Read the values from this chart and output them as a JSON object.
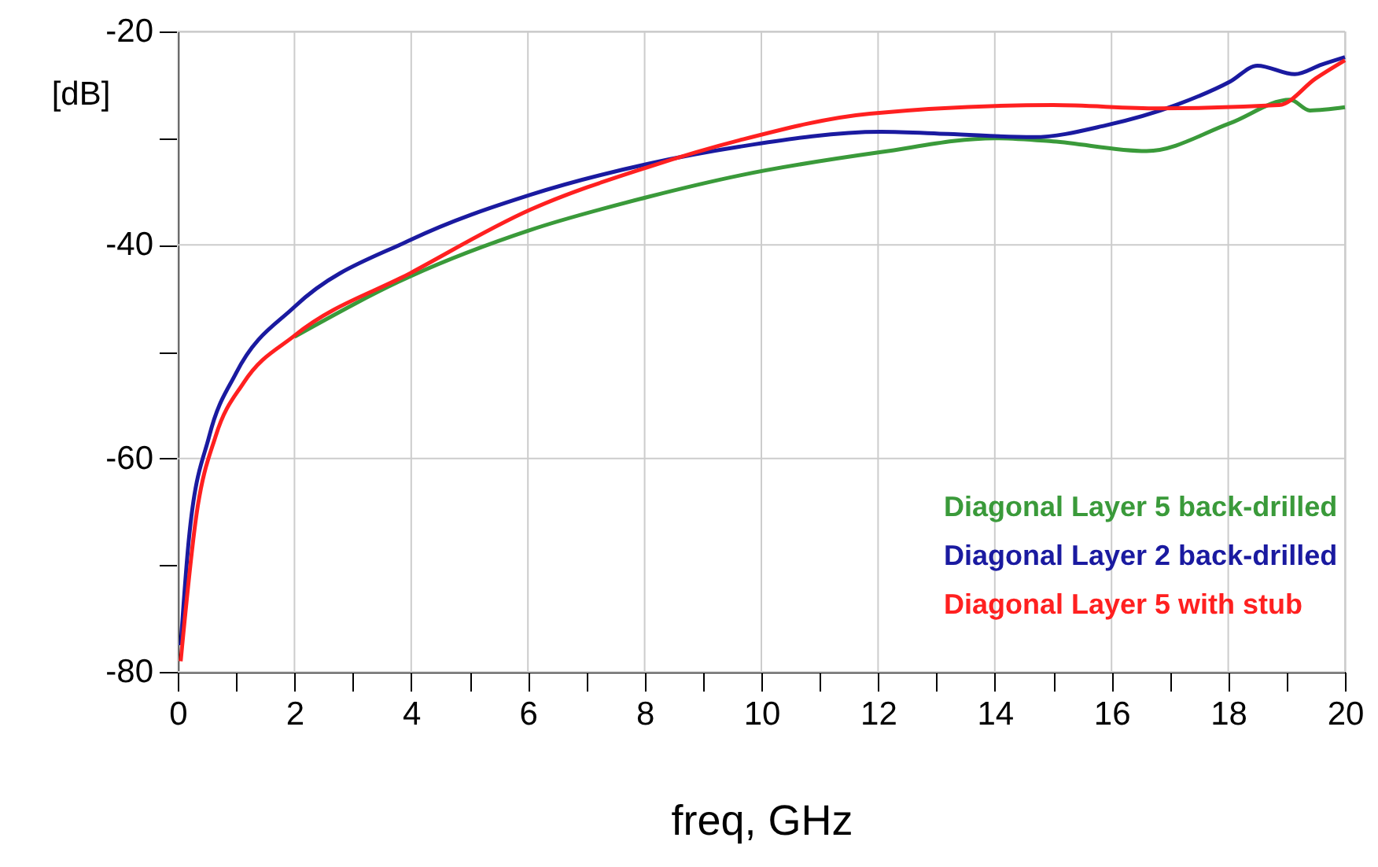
{
  "chart_data": {
    "type": "line",
    "xlabel": "freq, GHz",
    "ylabel": "[dB]",
    "xlim": [
      0,
      20
    ],
    "ylim": [
      -80,
      -20
    ],
    "xticks": [
      0,
      {
        "value": 1,
        "label": null
      },
      2,
      {
        "value": 3,
        "label": null
      },
      4,
      {
        "value": 5,
        "label": null
      },
      6,
      {
        "value": 7,
        "label": null
      },
      8,
      {
        "value": 9,
        "label": null
      },
      10,
      {
        "value": 11,
        "label": null
      },
      12,
      {
        "value": 13,
        "label": null
      },
      14,
      {
        "value": 15,
        "label": null
      },
      16,
      {
        "value": 17,
        "label": null
      },
      18,
      {
        "value": 19,
        "label": null
      },
      20
    ],
    "yticks": [
      -80,
      {
        "value": -70,
        "label": null
      },
      -60,
      {
        "value": -50,
        "label": null
      },
      -40,
      {
        "value": -30,
        "label": null
      },
      -20
    ],
    "grid": true,
    "legend": "bottom right",
    "line_style": "solid",
    "marker": "none",
    "series": [
      {
        "name": "Diagonal Layer 5 back-drilled",
        "color": "#3a9a3a",
        "x": [
          2.0,
          4.0,
          6.04,
          8.06,
          9.62,
          12.05,
          14.0,
          15.0,
          16.6,
          18.03,
          19.06,
          19.4,
          20
        ],
        "values": [
          -48.6,
          -42.9,
          -38.6,
          -35.5,
          -33.5,
          -31.3,
          -30.0,
          -30.3,
          -31.2,
          -28.6,
          -26.4,
          -27.4,
          -27.1
        ]
      },
      {
        "name": "Diagonal Layer 2 back-drilled",
        "color": "#1a1aa0",
        "x": [
          0.05,
          0.19,
          0.54,
          1.0,
          2.0,
          4.0,
          6.04,
          8.06,
          9.62,
          12.05,
          13.2,
          14.66,
          15.9,
          17.1,
          18.03,
          18.5,
          19.14,
          19.6,
          20
        ],
        "values": [
          -77.5,
          -67.6,
          -57.9,
          -52.0,
          -45.8,
          -39.5,
          -35.3,
          -32.4,
          -30.8,
          -29.4,
          -29.6,
          -29.9,
          -28.8,
          -26.9,
          -24.7,
          -23.2,
          -24.0,
          -23.1,
          -22.4
        ]
      },
      {
        "name": "Diagonal Layer 5 with stub",
        "color": "#ff2020",
        "x": [
          0.05,
          0.32,
          0.65,
          1.13,
          2.0,
          4.0,
          6.04,
          8.06,
          9.62,
          11.86,
          15.0,
          16.8,
          18.87,
          19.5,
          20
        ],
        "values": [
          -79,
          -65.3,
          -57.9,
          -52.9,
          -48.5,
          -42.6,
          -36.7,
          -32.7,
          -30.2,
          -27.7,
          -26.9,
          -27.2,
          -26.9,
          -24.4,
          -22.7
        ]
      }
    ]
  }
}
